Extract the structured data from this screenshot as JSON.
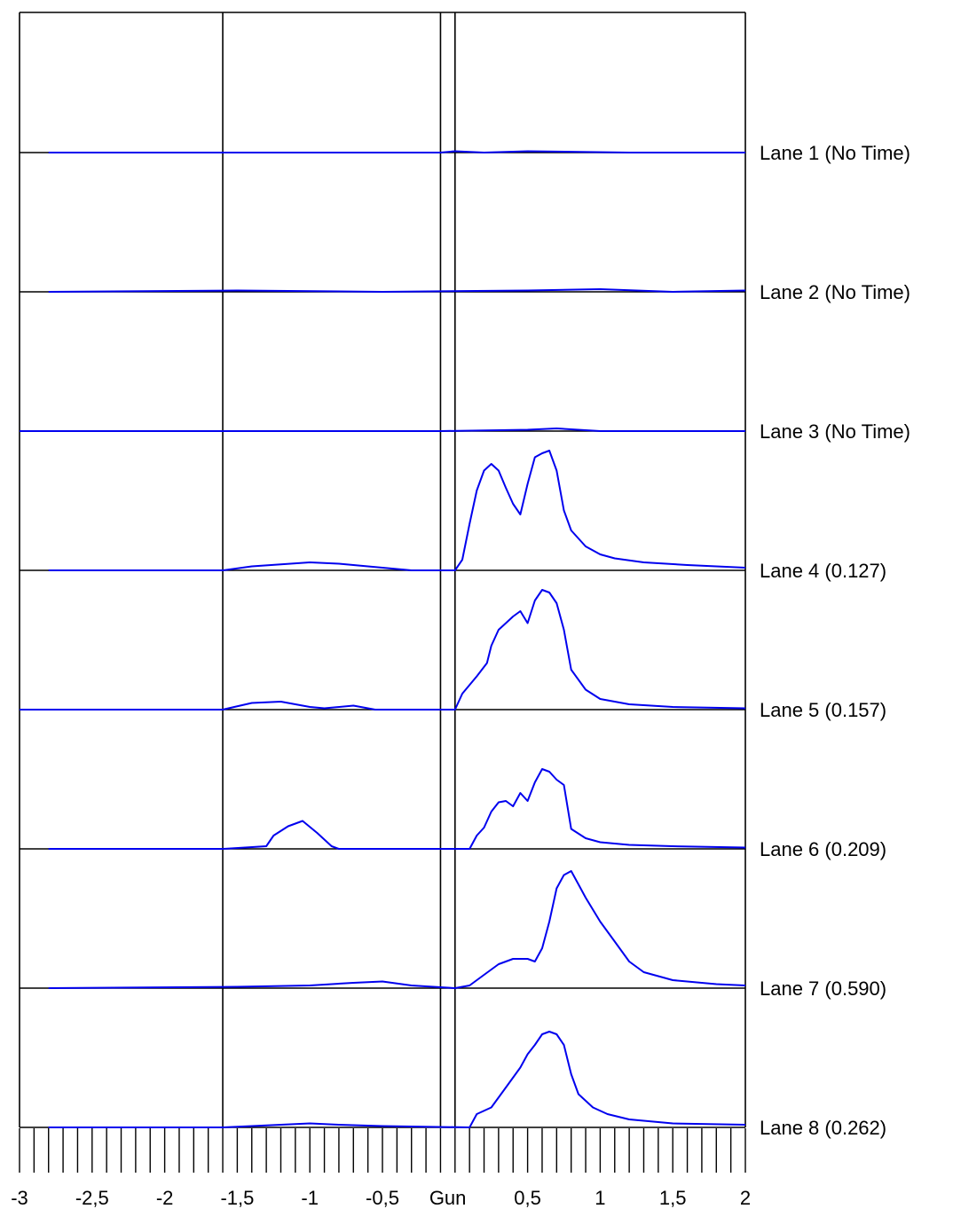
{
  "chart_data": {
    "type": "line",
    "xlim": [
      -3,
      2
    ],
    "x_ticks": [
      {
        "value": -3,
        "label": "-3"
      },
      {
        "value": -2.5,
        "label": "-2,5"
      },
      {
        "value": -2,
        "label": "-2"
      },
      {
        "value": -1.5,
        "label": "-1,5"
      },
      {
        "value": -1,
        "label": "-1"
      },
      {
        "value": -0.5,
        "label": "-0,5"
      },
      {
        "value": -0.05,
        "label": "Gun"
      },
      {
        "value": 0.5,
        "label": "0,5"
      },
      {
        "value": 1,
        "label": "1"
      },
      {
        "value": 1.5,
        "label": "1,5"
      },
      {
        "value": 2,
        "label": "2"
      }
    ],
    "minor_tick_step": 0.1,
    "reference_lines_x": [
      -1.6,
      -0.1,
      0
    ],
    "trace_color": "#0000ee",
    "axis_color": "#000000",
    "lanes": [
      {
        "label": "Lane 1 (No Time)",
        "points": [
          [
            -2.8,
            0
          ],
          [
            -0.1,
            0
          ],
          [
            0,
            0.01
          ],
          [
            0.2,
            0
          ],
          [
            0.5,
            0.01
          ],
          [
            1.2,
            0
          ],
          [
            2,
            0
          ]
        ]
      },
      {
        "label": "Lane 2 (No Time)",
        "points": [
          [
            -2.8,
            0
          ],
          [
            -1.5,
            0.01
          ],
          [
            -0.5,
            0
          ],
          [
            0.5,
            0.01
          ],
          [
            1,
            0.02
          ],
          [
            1.5,
            0
          ],
          [
            2,
            0.01
          ]
        ]
      },
      {
        "label": "Lane 3 (No Time)",
        "points": [
          [
            -3,
            0
          ],
          [
            -0.1,
            0
          ],
          [
            0.5,
            0.01
          ],
          [
            0.7,
            0.02
          ],
          [
            1,
            0
          ],
          [
            2,
            0
          ]
        ]
      },
      {
        "label": "Lane 4 (0.127)",
        "points": [
          [
            -2.8,
            0
          ],
          [
            -1.6,
            0
          ],
          [
            -1.4,
            0.03
          ],
          [
            -1.0,
            0.06
          ],
          [
            -0.8,
            0.05
          ],
          [
            -0.5,
            0.02
          ],
          [
            -0.3,
            0
          ],
          [
            0,
            0
          ],
          [
            0.05,
            0.08
          ],
          [
            0.1,
            0.35
          ],
          [
            0.15,
            0.6
          ],
          [
            0.2,
            0.75
          ],
          [
            0.25,
            0.8
          ],
          [
            0.3,
            0.75
          ],
          [
            0.35,
            0.62
          ],
          [
            0.4,
            0.5
          ],
          [
            0.45,
            0.42
          ],
          [
            0.5,
            0.65
          ],
          [
            0.55,
            0.85
          ],
          [
            0.6,
            0.88
          ],
          [
            0.65,
            0.9
          ],
          [
            0.7,
            0.75
          ],
          [
            0.75,
            0.45
          ],
          [
            0.8,
            0.3
          ],
          [
            0.9,
            0.18
          ],
          [
            1.0,
            0.12
          ],
          [
            1.1,
            0.09
          ],
          [
            1.3,
            0.06
          ],
          [
            1.6,
            0.04
          ],
          [
            2,
            0.02
          ]
        ]
      },
      {
        "label": "Lane 5 (0.157)",
        "points": [
          [
            -3,
            0
          ],
          [
            -1.6,
            0
          ],
          [
            -1.4,
            0.05
          ],
          [
            -1.2,
            0.06
          ],
          [
            -1.0,
            0.02
          ],
          [
            -0.9,
            0.01
          ],
          [
            -0.7,
            0.03
          ],
          [
            -0.55,
            0
          ],
          [
            0,
            0
          ],
          [
            0.05,
            0.12
          ],
          [
            0.15,
            0.25
          ],
          [
            0.22,
            0.35
          ],
          [
            0.25,
            0.48
          ],
          [
            0.3,
            0.6
          ],
          [
            0.35,
            0.65
          ],
          [
            0.4,
            0.7
          ],
          [
            0.45,
            0.74
          ],
          [
            0.5,
            0.65
          ],
          [
            0.55,
            0.82
          ],
          [
            0.6,
            0.9
          ],
          [
            0.65,
            0.88
          ],
          [
            0.7,
            0.8
          ],
          [
            0.75,
            0.6
          ],
          [
            0.8,
            0.3
          ],
          [
            0.9,
            0.15
          ],
          [
            1.0,
            0.08
          ],
          [
            1.2,
            0.04
          ],
          [
            1.5,
            0.02
          ],
          [
            2,
            0.01
          ]
        ]
      },
      {
        "label": "Lane 6 (0.209)",
        "points": [
          [
            -2.8,
            0
          ],
          [
            -1.6,
            0
          ],
          [
            -1.3,
            0.02
          ],
          [
            -1.25,
            0.1
          ],
          [
            -1.15,
            0.17
          ],
          [
            -1.05,
            0.21
          ],
          [
            -0.95,
            0.12
          ],
          [
            -0.85,
            0.02
          ],
          [
            -0.8,
            0
          ],
          [
            0.1,
            0
          ],
          [
            0.15,
            0.1
          ],
          [
            0.2,
            0.16
          ],
          [
            0.25,
            0.28
          ],
          [
            0.3,
            0.35
          ],
          [
            0.35,
            0.36
          ],
          [
            0.4,
            0.32
          ],
          [
            0.45,
            0.42
          ],
          [
            0.5,
            0.36
          ],
          [
            0.55,
            0.5
          ],
          [
            0.6,
            0.6
          ],
          [
            0.65,
            0.58
          ],
          [
            0.7,
            0.52
          ],
          [
            0.75,
            0.48
          ],
          [
            0.8,
            0.15
          ],
          [
            0.9,
            0.08
          ],
          [
            1.0,
            0.05
          ],
          [
            1.2,
            0.03
          ],
          [
            1.5,
            0.02
          ],
          [
            2,
            0.01
          ]
        ]
      },
      {
        "label": "Lane 7 (0.590)",
        "points": [
          [
            -2.8,
            0
          ],
          [
            -1.5,
            0.01
          ],
          [
            -1,
            0.02
          ],
          [
            -0.7,
            0.04
          ],
          [
            -0.5,
            0.05
          ],
          [
            -0.3,
            0.02
          ],
          [
            0,
            0
          ],
          [
            0.1,
            0.02
          ],
          [
            0.2,
            0.1
          ],
          [
            0.3,
            0.18
          ],
          [
            0.4,
            0.22
          ],
          [
            0.5,
            0.22
          ],
          [
            0.55,
            0.2
          ],
          [
            0.6,
            0.3
          ],
          [
            0.65,
            0.5
          ],
          [
            0.7,
            0.75
          ],
          [
            0.75,
            0.85
          ],
          [
            0.8,
            0.88
          ],
          [
            0.85,
            0.78
          ],
          [
            0.9,
            0.68
          ],
          [
            1.0,
            0.5
          ],
          [
            1.1,
            0.35
          ],
          [
            1.2,
            0.2
          ],
          [
            1.3,
            0.12
          ],
          [
            1.5,
            0.06
          ],
          [
            1.8,
            0.03
          ],
          [
            2,
            0.02
          ]
        ]
      },
      {
        "label": "Lane 8 (0.262)",
        "points": [
          [
            -2.8,
            0
          ],
          [
            -1.6,
            0
          ],
          [
            -1.2,
            0.02
          ],
          [
            -1.0,
            0.03
          ],
          [
            -0.8,
            0.02
          ],
          [
            -0.5,
            0.01
          ],
          [
            0.1,
            0
          ],
          [
            0.15,
            0.1
          ],
          [
            0.25,
            0.15
          ],
          [
            0.35,
            0.3
          ],
          [
            0.45,
            0.45
          ],
          [
            0.5,
            0.55
          ],
          [
            0.55,
            0.62
          ],
          [
            0.6,
            0.7
          ],
          [
            0.65,
            0.72
          ],
          [
            0.7,
            0.7
          ],
          [
            0.75,
            0.62
          ],
          [
            0.8,
            0.4
          ],
          [
            0.85,
            0.25
          ],
          [
            0.95,
            0.15
          ],
          [
            1.05,
            0.1
          ],
          [
            1.2,
            0.06
          ],
          [
            1.5,
            0.03
          ],
          [
            2,
            0.02
          ]
        ]
      }
    ]
  }
}
